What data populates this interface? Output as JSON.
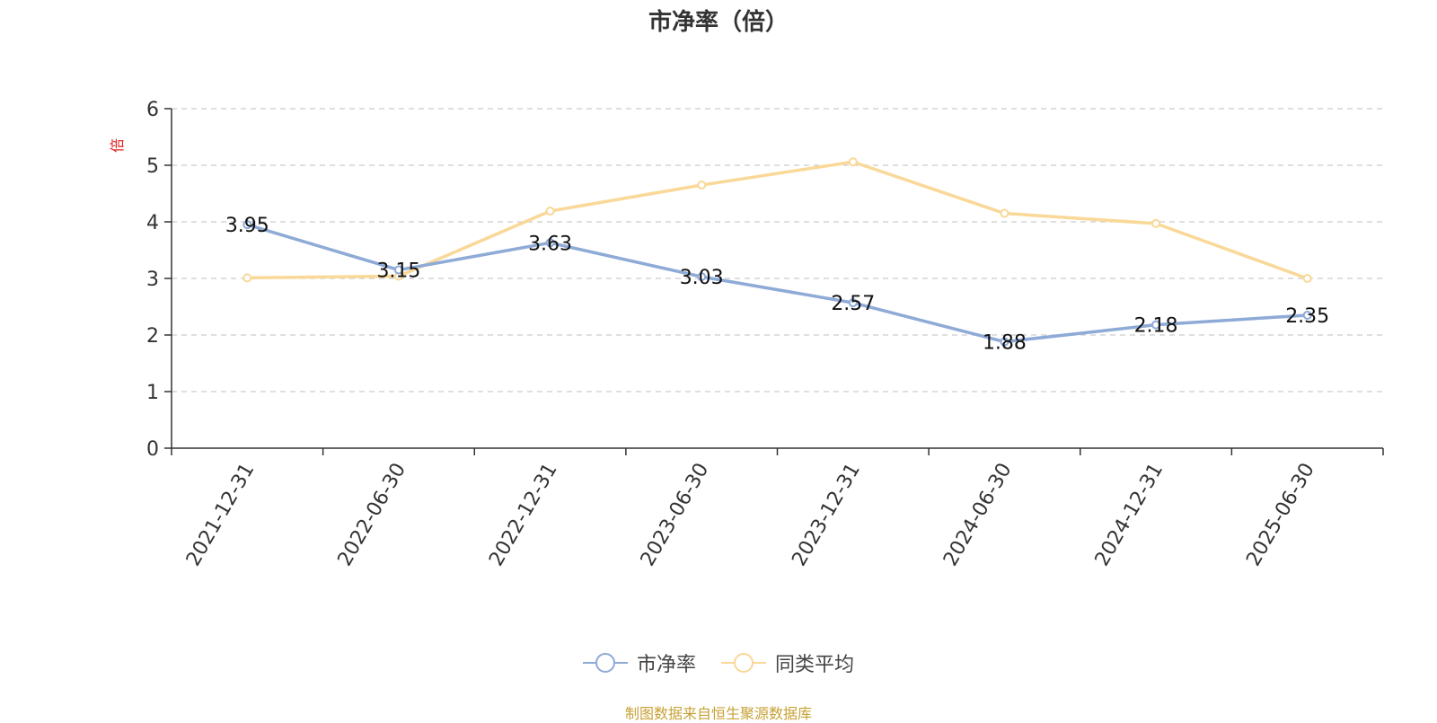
{
  "chart_data": {
    "type": "line",
    "title": "市净率（倍）",
    "ylabel": "倍",
    "xlabel": "",
    "categories": [
      "2021-12-31",
      "2022-06-30",
      "2022-12-31",
      "2023-06-30",
      "2023-12-31",
      "2024-06-30",
      "2024-12-31",
      "2025-06-30"
    ],
    "ylim": [
      0,
      6
    ],
    "yticks": [
      0,
      1,
      2,
      3,
      4,
      5,
      6
    ],
    "grid": true,
    "legend_position": "bottom",
    "series": [
      {
        "name": "市净率",
        "color": "#8eaad6",
        "values": [
          3.95,
          3.15,
          3.63,
          3.03,
          2.57,
          1.88,
          2.18,
          2.35
        ],
        "labels": [
          "3.95",
          "3.15",
          "3.63",
          "3.03",
          "2.57",
          "1.88",
          "2.18",
          "2.35"
        ]
      },
      {
        "name": "同类平均",
        "color": "#f9d898",
        "values": [
          3.01,
          3.04,
          4.19,
          4.65,
          5.06,
          4.15,
          3.97,
          3.0
        ]
      }
    ]
  },
  "legend": {
    "items": [
      "市净率",
      "同类平均"
    ]
  },
  "footer": {
    "source": "制图数据来自恒生聚源数据库"
  },
  "colors": {
    "axis": "#333333",
    "grid": "#cccccc",
    "ylabel": "#e02020"
  }
}
